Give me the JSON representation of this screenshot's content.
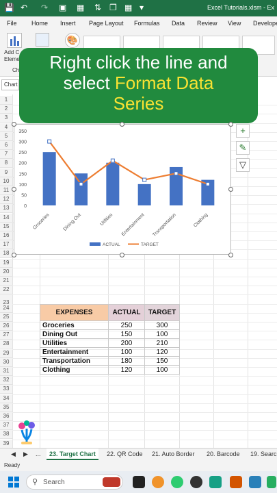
{
  "titlebar": {
    "filename": "Excel Tutorials.xlsm - Ex"
  },
  "menu": {
    "items": [
      "File",
      "Home",
      "Insert",
      "Page Layout",
      "Formulas",
      "Data",
      "Review",
      "View",
      "Develope"
    ]
  },
  "ribbon": {
    "add_chart_label": "Add C",
    "element_label": "Eleme",
    "chart_group_label": "Ch"
  },
  "banner": {
    "line1": "Right click the line and",
    "line2_a": "select ",
    "line2_b": "Format Data",
    "line3": "Series"
  },
  "namebox": {
    "value": "Chart"
  },
  "rows": [
    "1",
    "2",
    "3",
    "4",
    "5",
    "6",
    "7",
    "8",
    "9",
    "10",
    "11",
    "12",
    "13",
    "14",
    "15",
    "16",
    "17",
    "18",
    "19",
    "20",
    "21",
    "22",
    "23",
    "24",
    "25",
    "26",
    "27",
    "28",
    "29",
    "30",
    "31",
    "32",
    "33",
    "34",
    "35",
    "36",
    "37",
    "38",
    "39"
  ],
  "chart_data": {
    "type": "bar",
    "categories": [
      "Groceries",
      "Dining Out",
      "Utilities",
      "Entertainment",
      "Transportation",
      "Clothing"
    ],
    "series": [
      {
        "name": "ACTUAL",
        "type": "bar",
        "values": [
          250,
          150,
          200,
          100,
          180,
          120
        ],
        "color": "#4472c4"
      },
      {
        "name": "TARGET",
        "type": "line",
        "values": [
          300,
          100,
          210,
          120,
          150,
          100
        ],
        "color": "#ed7d31"
      }
    ],
    "ylim": [
      0,
      350
    ],
    "yticks": [
      "350",
      "300",
      "250",
      "200",
      "150",
      "100",
      "50",
      "0"
    ],
    "legend": "bottom"
  },
  "table": {
    "headers": [
      "EXPENSES",
      "ACTUAL",
      "TARGET"
    ],
    "header_colors": [
      "#f8cba6",
      "#e4d0d8",
      "#e2d4da"
    ],
    "rows": [
      [
        "Groceries",
        "250",
        "300"
      ],
      [
        "Dining Out",
        "150",
        "100"
      ],
      [
        "Utilities",
        "200",
        "210"
      ],
      [
        "Entertainment",
        "100",
        "120"
      ],
      [
        "Transportation",
        "180",
        "150"
      ],
      [
        "Clothing",
        "120",
        "100"
      ]
    ]
  },
  "tabs": {
    "items": [
      "23. Target Chart",
      "22. QR Code",
      "21. Auto Border",
      "20. Barcode",
      "19. Search"
    ],
    "ellipsis": "...",
    "active": "23. Target Chart"
  },
  "status": {
    "ready": "Ready"
  },
  "taskbar": {
    "search_placeholder": "Search"
  },
  "colors": {
    "excel_green": "#1f7145",
    "banner_green": "#218a3e",
    "highlight_yellow": "#f9e233"
  }
}
